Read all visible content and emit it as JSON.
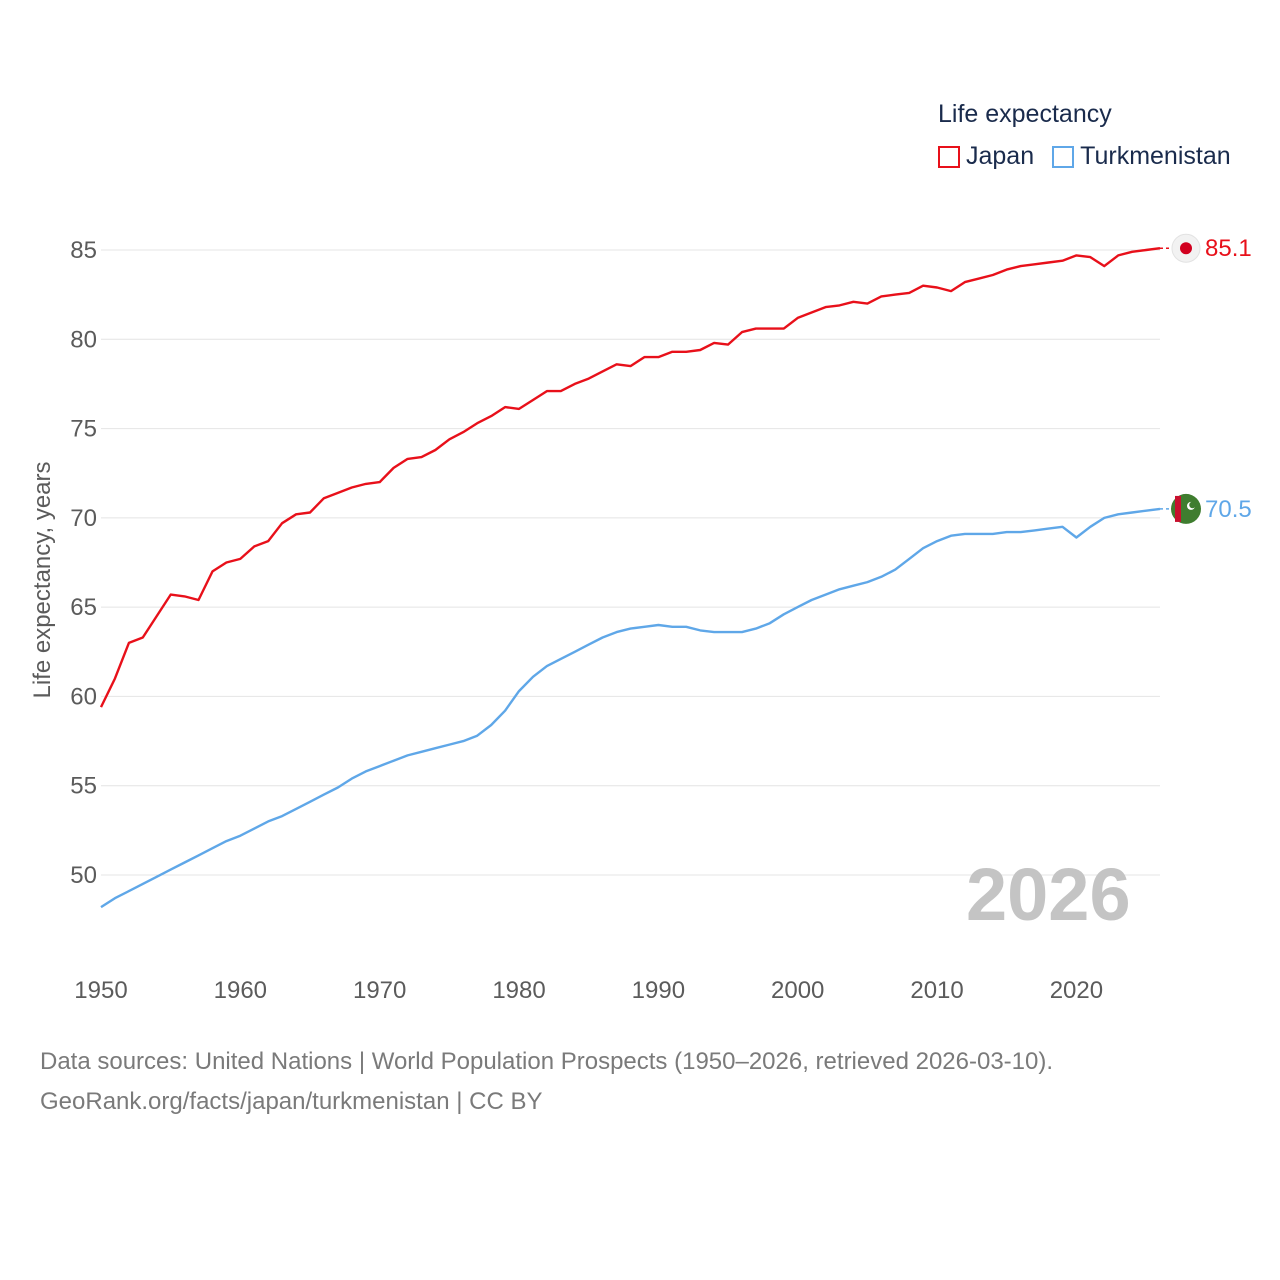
{
  "legend": {
    "title": "Life expectancy",
    "items": [
      {
        "label": "Japan",
        "color": "#e8101a"
      },
      {
        "label": "Turkmenistan",
        "color": "#5fa7e8"
      }
    ]
  },
  "year_stamp": "2026",
  "footer": {
    "line1": "Data sources: United Nations | World Population Prospects (1950–2026, retrieved 2026-03-10).",
    "line2": "GeoRank.org/facts/japan/turkmenistan | CC BY"
  },
  "chart_data": {
    "type": "line",
    "title": "",
    "xlabel": "",
    "ylabel": "Life expectancy, years",
    "xlim": [
      1950,
      2026
    ],
    "ylim": [
      47,
      86
    ],
    "grid": true,
    "legend_position": "top-right",
    "x_ticks": [
      1950,
      1960,
      1970,
      1980,
      1990,
      2000,
      2010,
      2020
    ],
    "y_ticks": [
      50,
      55,
      60,
      65,
      70,
      75,
      80,
      85
    ],
    "x": [
      1950,
      1951,
      1952,
      1953,
      1954,
      1955,
      1956,
      1957,
      1958,
      1959,
      1960,
      1961,
      1962,
      1963,
      1964,
      1965,
      1966,
      1967,
      1968,
      1969,
      1970,
      1971,
      1972,
      1973,
      1974,
      1975,
      1976,
      1977,
      1978,
      1979,
      1980,
      1981,
      1982,
      1983,
      1984,
      1985,
      1986,
      1987,
      1988,
      1989,
      1990,
      1991,
      1992,
      1993,
      1994,
      1995,
      1996,
      1997,
      1998,
      1999,
      2000,
      2001,
      2002,
      2003,
      2004,
      2005,
      2006,
      2007,
      2008,
      2009,
      2010,
      2011,
      2012,
      2013,
      2014,
      2015,
      2016,
      2017,
      2018,
      2019,
      2020,
      2021,
      2022,
      2023,
      2024,
      2025,
      2026
    ],
    "series": [
      {
        "name": "Japan",
        "color": "#e8101a",
        "end_label": "85.1",
        "values": [
          59.4,
          61.0,
          63.0,
          63.3,
          64.5,
          65.7,
          65.6,
          65.4,
          67.0,
          67.5,
          67.7,
          68.4,
          68.7,
          69.7,
          70.2,
          70.3,
          71.1,
          71.4,
          71.7,
          71.9,
          72.0,
          72.8,
          73.3,
          73.4,
          73.8,
          74.4,
          74.8,
          75.3,
          75.7,
          76.2,
          76.1,
          76.6,
          77.1,
          77.1,
          77.5,
          77.8,
          78.2,
          78.6,
          78.5,
          79.0,
          79.0,
          79.3,
          79.3,
          79.4,
          79.8,
          79.7,
          80.4,
          80.6,
          80.6,
          80.6,
          81.2,
          81.5,
          81.8,
          81.9,
          82.1,
          82.0,
          82.4,
          82.5,
          82.6,
          83.0,
          82.9,
          82.7,
          83.2,
          83.4,
          83.6,
          83.9,
          84.1,
          84.2,
          84.3,
          84.4,
          84.7,
          84.6,
          84.1,
          84.7,
          84.9,
          85.0,
          85.1
        ]
      },
      {
        "name": "Turkmenistan",
        "color": "#5fa7e8",
        "end_label": "70.5",
        "values": [
          48.2,
          48.7,
          49.1,
          49.5,
          49.9,
          50.3,
          50.7,
          51.1,
          51.5,
          51.9,
          52.2,
          52.6,
          53.0,
          53.3,
          53.7,
          54.1,
          54.5,
          54.9,
          55.4,
          55.8,
          56.1,
          56.4,
          56.7,
          56.9,
          57.1,
          57.3,
          57.5,
          57.8,
          58.4,
          59.2,
          60.3,
          61.1,
          61.7,
          62.1,
          62.5,
          62.9,
          63.3,
          63.6,
          63.8,
          63.9,
          64.0,
          63.9,
          63.9,
          63.7,
          63.6,
          63.6,
          63.6,
          63.8,
          64.1,
          64.6,
          65.0,
          65.4,
          65.7,
          66.0,
          66.2,
          66.4,
          66.7,
          67.1,
          67.7,
          68.3,
          68.7,
          69.0,
          69.1,
          69.1,
          69.1,
          69.2,
          69.2,
          69.3,
          69.4,
          69.5,
          68.9,
          69.5,
          70.0,
          70.2,
          70.3,
          70.4,
          70.5
        ]
      }
    ]
  }
}
